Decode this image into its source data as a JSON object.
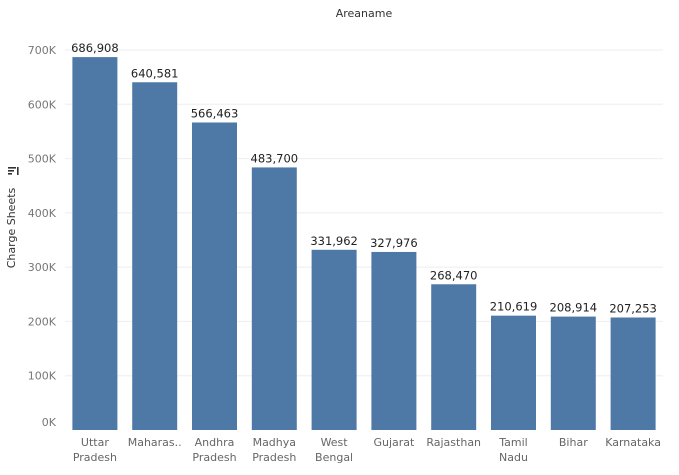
{
  "chart_data": {
    "type": "bar",
    "title": "Areaname",
    "xlabel": "",
    "ylabel": "Charge Sheets",
    "categories": [
      [
        "Uttar",
        "Pradesh"
      ],
      [
        "Maharas.."
      ],
      [
        "Andhra",
        "Pradesh"
      ],
      [
        "Madhya",
        "Pradesh"
      ],
      [
        "West",
        "Bengal"
      ],
      [
        "Gujarat"
      ],
      [
        "Rajasthan"
      ],
      [
        "Tamil",
        "Nadu"
      ],
      [
        "Bihar"
      ],
      [
        "Karnataka"
      ]
    ],
    "values": [
      686908,
      640581,
      566463,
      483700,
      331962,
      327976,
      268470,
      210619,
      208914,
      207253
    ],
    "value_labels": [
      "686,908",
      "640,581",
      "566,463",
      "483,700",
      "331,962",
      "327,976",
      "268,470",
      "210,619",
      "208,914",
      "207,253"
    ],
    "ylim": [
      0,
      700000
    ],
    "yticks": [
      0,
      100000,
      200000,
      300000,
      400000,
      500000,
      600000,
      700000
    ],
    "ytick_labels": [
      "0K",
      "100K",
      "200K",
      "300K",
      "400K",
      "500K",
      "600K",
      "700K"
    ],
    "bar_color": "#4e79a7",
    "grid": true,
    "sort_icon": "sort-descending-icon"
  }
}
